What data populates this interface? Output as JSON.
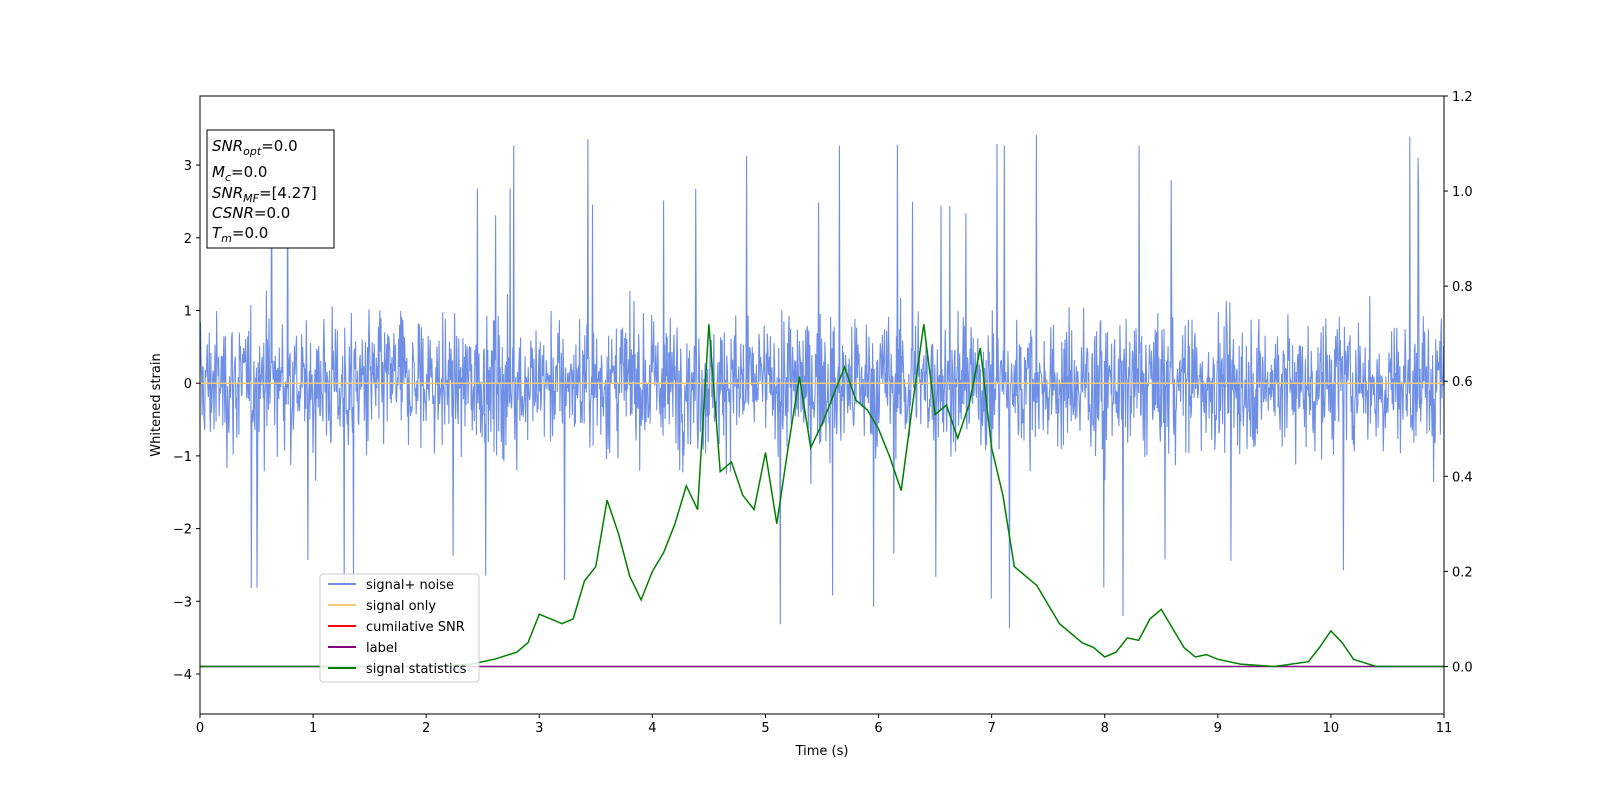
{
  "chart_data": {
    "type": "line",
    "xlabel": "Time (s)",
    "ylabel": "Whitened strain",
    "xlim": [
      0,
      11
    ],
    "ylim_left": [
      -4.55,
      3.95
    ],
    "ylim_right": [
      -0.1,
      1.2
    ],
    "x_ticks": [
      "0",
      "1",
      "2",
      "3",
      "4",
      "5",
      "6",
      "7",
      "8",
      "9",
      "10",
      "11"
    ],
    "y_ticks_left": [
      "−4",
      "−3",
      "−2",
      "−1",
      "0",
      "1",
      "2",
      "3"
    ],
    "y_ticks_right": [
      "0.0",
      "0.2",
      "0.4",
      "0.6",
      "0.8",
      "1.0",
      "1.2"
    ],
    "grid": false,
    "legend_position": "lower-left",
    "series": [
      {
        "name": "signal+ noise",
        "axis": "left",
        "color": "#6f8fe6",
        "kind": "noise",
        "typical_range": [
          -1.8,
          1.8
        ],
        "extreme_range": [
          -4.15,
          3.55
        ]
      },
      {
        "name": "signal only",
        "axis": "left",
        "color": "#f5c97a",
        "x": [
          0,
          11
        ],
        "y": [
          0,
          0
        ]
      },
      {
        "name": "cumilative SNR",
        "axis": "left",
        "color": "#ff0000",
        "x": [],
        "y": []
      },
      {
        "name": "label",
        "axis": "right",
        "color": "#800080",
        "x": [
          0,
          11
        ],
        "y": [
          0,
          0
        ]
      },
      {
        "name": "signal statistics",
        "axis": "right",
        "color": "#008000",
        "x": [
          0,
          1,
          2,
          2.4,
          2.6,
          2.8,
          2.9,
          3.0,
          3.1,
          3.2,
          3.3,
          3.4,
          3.5,
          3.6,
          3.7,
          3.8,
          3.9,
          4.0,
          4.1,
          4.2,
          4.3,
          4.4,
          4.5,
          4.6,
          4.7,
          4.8,
          4.9,
          5.0,
          5.1,
          5.2,
          5.3,
          5.4,
          5.5,
          5.6,
          5.7,
          5.8,
          5.9,
          6.0,
          6.1,
          6.2,
          6.3,
          6.4,
          6.5,
          6.6,
          6.7,
          6.8,
          6.9,
          7.0,
          7.1,
          7.2,
          7.3,
          7.4,
          7.5,
          7.6,
          7.7,
          7.8,
          7.9,
          8.0,
          8.1,
          8.2,
          8.3,
          8.4,
          8.5,
          8.6,
          8.7,
          8.8,
          8.9,
          9.0,
          9.1,
          9.2,
          9.5,
          9.8,
          9.9,
          10.0,
          10.1,
          10.2,
          10.4,
          11
        ],
        "y": [
          0.0,
          0.0,
          0.0,
          0.005,
          0.015,
          0.03,
          0.05,
          0.11,
          0.1,
          0.09,
          0.1,
          0.18,
          0.21,
          0.35,
          0.28,
          0.19,
          0.14,
          0.2,
          0.24,
          0.3,
          0.38,
          0.33,
          0.72,
          0.41,
          0.43,
          0.36,
          0.33,
          0.45,
          0.3,
          0.46,
          0.61,
          0.46,
          0.51,
          0.57,
          0.63,
          0.56,
          0.54,
          0.5,
          0.44,
          0.37,
          0.55,
          0.72,
          0.53,
          0.55,
          0.48,
          0.55,
          0.67,
          0.46,
          0.36,
          0.21,
          0.19,
          0.17,
          0.13,
          0.09,
          0.07,
          0.05,
          0.04,
          0.02,
          0.03,
          0.06,
          0.055,
          0.1,
          0.12,
          0.08,
          0.04,
          0.02,
          0.025,
          0.015,
          0.01,
          0.005,
          0.0,
          0.01,
          0.04,
          0.075,
          0.05,
          0.015,
          0.0,
          0.0
        ]
      }
    ],
    "annotation": [
      {
        "base": "SNR",
        "sub": "opt",
        "value": "=0.0"
      },
      {
        "base": "M",
        "sub": "c",
        "value": "=0.0"
      },
      {
        "base": "SNR",
        "sub": "MF",
        "value": "=[4.27]"
      },
      {
        "base": "CSNR",
        "sub": "",
        "value": "=0.0"
      },
      {
        "base": "T",
        "sub": "m",
        "value": "=0.0"
      }
    ]
  }
}
